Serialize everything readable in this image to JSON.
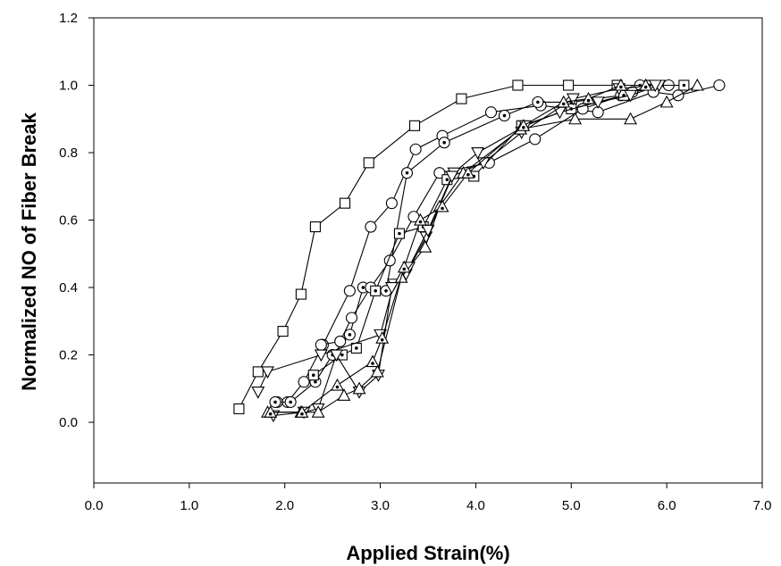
{
  "chart_data": {
    "type": "line",
    "title": "",
    "xlabel": "Applied  Strain(%)",
    "ylabel": "Normalized  NO  of  Fiber Break",
    "xlim": [
      0,
      7
    ],
    "ylim": [
      -0.18,
      1.2
    ],
    "x_ticks": [
      "0.0",
      "1.0",
      "2.0",
      "3.0",
      "4.0",
      "5.0",
      "6.0",
      "7.0"
    ],
    "y_ticks": [
      "0.0",
      "0.2",
      "0.4",
      "0.6",
      "0.8",
      "1.0",
      "1.2"
    ],
    "x_tick_values": [
      0,
      1,
      2,
      3,
      4,
      5,
      6,
      7
    ],
    "y_tick_values": [
      0,
      0.2,
      0.4,
      0.6,
      0.8,
      1.0,
      1.2
    ],
    "grid": false,
    "legend": "none",
    "series": [
      {
        "marker": "square",
        "x": [
          1.52,
          1.72,
          1.98,
          2.17,
          2.32,
          2.63,
          2.88,
          3.36,
          3.85,
          4.44,
          4.97,
          5.48
        ],
        "y": [
          0.04,
          0.15,
          0.27,
          0.38,
          0.58,
          0.65,
          0.77,
          0.88,
          0.96,
          1.0,
          1.0,
          1.0
        ]
      },
      {
        "marker": "circle",
        "x": [
          1.92,
          2.03,
          2.2,
          2.4,
          2.68,
          2.9,
          3.12,
          3.37,
          3.65,
          4.16,
          4.68,
          5.28,
          5.86,
          6.12,
          6.55
        ],
        "y": [
          0.06,
          0.06,
          0.12,
          0.23,
          0.39,
          0.58,
          0.65,
          0.81,
          0.85,
          0.92,
          0.94,
          0.92,
          0.98,
          0.97,
          1.0
        ]
      },
      {
        "marker": "circle-dot",
        "x": [
          1.9,
          2.06,
          2.32,
          2.5,
          2.68,
          2.82,
          3.06,
          3.28,
          3.67,
          4.3,
          4.65,
          5.0,
          5.52,
          5.72
        ],
        "y": [
          0.06,
          0.06,
          0.12,
          0.2,
          0.26,
          0.4,
          0.39,
          0.74,
          0.83,
          0.91,
          0.95,
          0.95,
          0.97,
          1.0
        ]
      },
      {
        "marker": "circle",
        "x": [
          2.38,
          2.58,
          2.7,
          2.9,
          3.1,
          3.35,
          3.62,
          4.14,
          4.62,
          5.12,
          5.64,
          6.02
        ],
        "y": [
          0.23,
          0.24,
          0.31,
          0.4,
          0.48,
          0.61,
          0.74,
          0.77,
          0.84,
          0.93,
          0.98,
          1.0
        ]
      },
      {
        "marker": "square-dot",
        "x": [
          2.3,
          2.6,
          2.75,
          2.95,
          3.2,
          3.45,
          3.7,
          3.98,
          4.48,
          5.0,
          5.55,
          5.82,
          6.18
        ],
        "y": [
          0.14,
          0.2,
          0.22,
          0.39,
          0.56,
          0.58,
          0.72,
          0.73,
          0.88,
          0.93,
          0.97,
          1.0,
          1.0
        ]
      },
      {
        "marker": "triangle-down",
        "x": [
          1.72,
          1.82,
          2.38,
          3.0,
          3.14,
          3.27,
          3.48,
          3.77,
          4.02,
          4.52,
          4.88,
          5.28,
          5.62,
          5.92
        ],
        "y": [
          0.09,
          0.15,
          0.2,
          0.26,
          0.41,
          0.44,
          0.55,
          0.74,
          0.8,
          0.88,
          0.92,
          0.95,
          0.97,
          1.0
        ]
      },
      {
        "marker": "triangle-down",
        "x": [
          1.88,
          2.2,
          2.35,
          2.54,
          2.78,
          2.98,
          3.12,
          3.3,
          3.5,
          3.75,
          4.08,
          4.48,
          5.02,
          5.5,
          5.88
        ],
        "y": [
          0.02,
          0.03,
          0.04,
          0.2,
          0.09,
          0.14,
          0.4,
          0.46,
          0.57,
          0.73,
          0.77,
          0.86,
          0.96,
          0.99,
          1.0
        ]
      },
      {
        "marker": "triangle",
        "x": [
          1.82,
          2.17,
          2.35,
          2.62,
          2.78,
          2.97,
          3.22,
          3.47,
          3.62,
          3.87,
          4.47,
          5.04,
          5.62,
          6.0,
          6.32
        ],
        "y": [
          0.03,
          0.03,
          0.03,
          0.08,
          0.1,
          0.15,
          0.43,
          0.52,
          0.64,
          0.74,
          0.87,
          0.9,
          0.9,
          0.95,
          1.0
        ]
      },
      {
        "marker": "triangle-dot",
        "x": [
          1.85,
          2.18,
          2.55,
          2.92,
          3.02,
          3.25,
          3.42,
          3.65,
          3.92,
          4.5,
          4.92,
          5.18,
          5.52,
          5.78
        ],
        "y": [
          0.03,
          0.03,
          0.11,
          0.18,
          0.25,
          0.46,
          0.6,
          0.64,
          0.74,
          0.88,
          0.95,
          0.96,
          1.0,
          1.0
        ]
      }
    ]
  }
}
